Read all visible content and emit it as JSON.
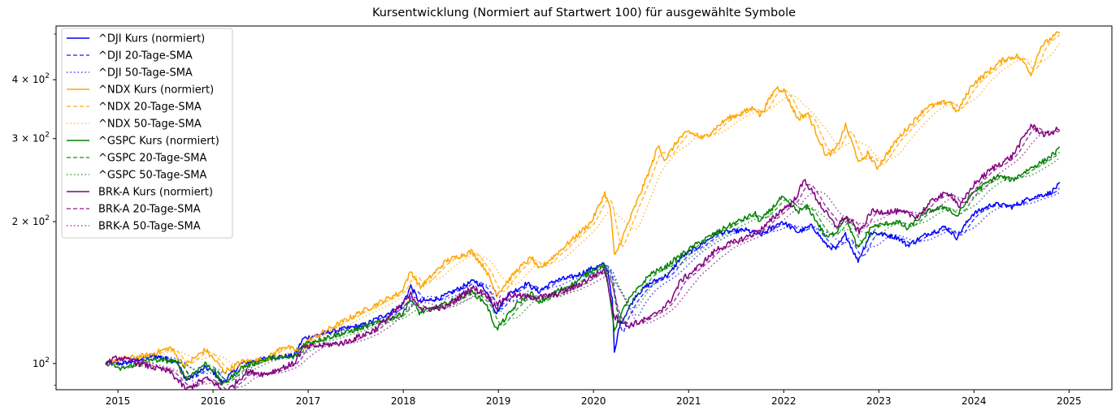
{
  "chart_data": {
    "type": "line",
    "title": "Kursentwicklung (Normiert auf Startwert 100) für ausgewählte Symbole",
    "xlabel": "",
    "ylabel": "",
    "yscale": "log",
    "xlim": [
      2014.35,
      2025.45
    ],
    "ylim": [
      88,
      520
    ],
    "x_ticks": [
      "2015",
      "2016",
      "2017",
      "2018",
      "2019",
      "2020",
      "2021",
      "2022",
      "2023",
      "2024",
      "2025"
    ],
    "y_ticks": [
      {
        "value": 100,
        "base": "10",
        "exp": "2"
      },
      {
        "value": 200,
        "base": "2 × 10",
        "exp": "2"
      },
      {
        "value": 300,
        "base": "3 × 10",
        "exp": "2"
      },
      {
        "value": 400,
        "base": "4 × 10",
        "exp": "2"
      }
    ],
    "y_minor_ticks": [
      90,
      500
    ],
    "grid": false,
    "legend_position": "upper-left",
    "legend": [
      "^DJI Kurs (normiert)",
      "^DJI 20-Tage-SMA",
      "^DJI 50-Tage-SMA",
      "^NDX Kurs (normiert)",
      "^NDX 20-Tage-SMA",
      "^NDX 50-Tage-SMA",
      "^GSPC Kurs (normiert)",
      "^GSPC 20-Tage-SMA",
      "^GSPC 50-Tage-SMA",
      "BRK-A Kurs (normiert)",
      "BRK-A 20-Tage-SMA",
      "BRK-A 50-Tage-SMA"
    ],
    "symbols": [
      {
        "name": "^DJI",
        "color": "#0000ff",
        "anchors": [
          [
            2014.87,
            100
          ],
          [
            2015.05,
            100
          ],
          [
            2015.38,
            104
          ],
          [
            2015.62,
            101
          ],
          [
            2015.72,
            92
          ],
          [
            2015.92,
            98
          ],
          [
            2016.0,
            96
          ],
          [
            2016.1,
            91
          ],
          [
            2016.3,
            100
          ],
          [
            2016.6,
            103
          ],
          [
            2016.85,
            104
          ],
          [
            2016.95,
            113
          ],
          [
            2017.25,
            117
          ],
          [
            2017.6,
            121
          ],
          [
            2017.98,
            132
          ],
          [
            2018.08,
            146
          ],
          [
            2018.17,
            135
          ],
          [
            2018.4,
            138
          ],
          [
            2018.75,
            150
          ],
          [
            2018.87,
            143
          ],
          [
            2018.98,
            128
          ],
          [
            2019.1,
            140
          ],
          [
            2019.3,
            148
          ],
          [
            2019.42,
            142
          ],
          [
            2019.6,
            150
          ],
          [
            2019.8,
            153
          ],
          [
            2019.98,
            159
          ],
          [
            2020.1,
            162
          ],
          [
            2020.15,
            158
          ],
          [
            2020.2,
            135
          ],
          [
            2020.22,
            104
          ],
          [
            2020.27,
            120
          ],
          [
            2020.45,
            140
          ],
          [
            2020.6,
            148
          ],
          [
            2020.8,
            155
          ],
          [
            2020.92,
            168
          ],
          [
            2021.1,
            177
          ],
          [
            2021.3,
            189
          ],
          [
            2021.6,
            192
          ],
          [
            2021.75,
            187
          ],
          [
            2021.98,
            200
          ],
          [
            2022.15,
            190
          ],
          [
            2022.3,
            196
          ],
          [
            2022.45,
            178
          ],
          [
            2022.55,
            175
          ],
          [
            2022.65,
            188
          ],
          [
            2022.78,
            165
          ],
          [
            2022.92,
            190
          ],
          [
            2023.2,
            185
          ],
          [
            2023.3,
            178
          ],
          [
            2023.5,
            188
          ],
          [
            2023.7,
            195
          ],
          [
            2023.82,
            185
          ],
          [
            2023.98,
            207
          ],
          [
            2024.2,
            218
          ],
          [
            2024.4,
            215
          ],
          [
            2024.6,
            225
          ],
          [
            2024.8,
            230
          ],
          [
            2024.9,
            240
          ]
        ],
        "sma20_lag": 0.055,
        "sma50_lag": 0.14,
        "noise": 1.2
      },
      {
        "name": "^NDX",
        "color": "#ffa500",
        "anchors": [
          [
            2014.87,
            100
          ],
          [
            2015.0,
            102
          ],
          [
            2015.3,
            104
          ],
          [
            2015.55,
            108
          ],
          [
            2015.7,
            99
          ],
          [
            2015.92,
            107
          ],
          [
            2016.05,
            100
          ],
          [
            2016.12,
            96
          ],
          [
            2016.3,
            101
          ],
          [
            2016.55,
            102
          ],
          [
            2016.75,
            109
          ],
          [
            2016.9,
            106
          ],
          [
            2017.0,
            112
          ],
          [
            2017.5,
            127
          ],
          [
            2017.98,
            142
          ],
          [
            2018.08,
            157
          ],
          [
            2018.18,
            145
          ],
          [
            2018.45,
            165
          ],
          [
            2018.72,
            173
          ],
          [
            2018.87,
            158
          ],
          [
            2018.98,
            140
          ],
          [
            2019.2,
            158
          ],
          [
            2019.35,
            168
          ],
          [
            2019.42,
            158
          ],
          [
            2019.6,
            170
          ],
          [
            2019.8,
            185
          ],
          [
            2019.98,
            200
          ],
          [
            2020.12,
            230
          ],
          [
            2020.18,
            212
          ],
          [
            2020.22,
            168
          ],
          [
            2020.35,
            195
          ],
          [
            2020.6,
            260
          ],
          [
            2020.68,
            290
          ],
          [
            2020.75,
            270
          ],
          [
            2020.9,
            300
          ],
          [
            2021.0,
            310
          ],
          [
            2021.15,
            300
          ],
          [
            2021.4,
            330
          ],
          [
            2021.7,
            350
          ],
          [
            2021.75,
            335
          ],
          [
            2021.92,
            385
          ],
          [
            2022.0,
            380
          ],
          [
            2022.15,
            330
          ],
          [
            2022.25,
            340
          ],
          [
            2022.45,
            275
          ],
          [
            2022.55,
            285
          ],
          [
            2022.65,
            320
          ],
          [
            2022.8,
            265
          ],
          [
            2022.88,
            280
          ],
          [
            2022.98,
            260
          ],
          [
            2023.2,
            300
          ],
          [
            2023.5,
            350
          ],
          [
            2023.75,
            360
          ],
          [
            2023.82,
            340
          ],
          [
            2023.98,
            390
          ],
          [
            2024.3,
            440
          ],
          [
            2024.45,
            450
          ],
          [
            2024.55,
            430
          ],
          [
            2024.6,
            410
          ],
          [
            2024.7,
            470
          ],
          [
            2024.9,
            505
          ]
        ],
        "sma20_lag": 0.055,
        "sma50_lag": 0.14,
        "noise": 1.3
      },
      {
        "name": "^GSPC",
        "color": "#008000",
        "anchors": [
          [
            2014.87,
            100
          ],
          [
            2014.95,
            100
          ],
          [
            2015.0,
            97
          ],
          [
            2015.35,
            102
          ],
          [
            2015.6,
            101
          ],
          [
            2015.72,
            93
          ],
          [
            2015.92,
            100
          ],
          [
            2016.0,
            97
          ],
          [
            2016.1,
            90
          ],
          [
            2016.3,
            98
          ],
          [
            2016.6,
            103
          ],
          [
            2016.85,
            103
          ],
          [
            2016.95,
            110
          ],
          [
            2017.5,
            118
          ],
          [
            2017.98,
            127
          ],
          [
            2018.08,
            137
          ],
          [
            2018.17,
            128
          ],
          [
            2018.45,
            134
          ],
          [
            2018.72,
            142
          ],
          [
            2018.87,
            134
          ],
          [
            2018.98,
            118
          ],
          [
            2019.2,
            134
          ],
          [
            2019.35,
            141
          ],
          [
            2019.42,
            134
          ],
          [
            2019.6,
            142
          ],
          [
            2019.8,
            148
          ],
          [
            2019.98,
            158
          ],
          [
            2020.12,
            162
          ],
          [
            2020.22,
            118
          ],
          [
            2020.35,
            135
          ],
          [
            2020.6,
            155
          ],
          [
            2020.75,
            160
          ],
          [
            2020.92,
            170
          ],
          [
            2021.1,
            180
          ],
          [
            2021.4,
            195
          ],
          [
            2021.7,
            208
          ],
          [
            2021.75,
            200
          ],
          [
            2021.98,
            225
          ],
          [
            2022.15,
            210
          ],
          [
            2022.25,
            215
          ],
          [
            2022.45,
            185
          ],
          [
            2022.55,
            190
          ],
          [
            2022.65,
            205
          ],
          [
            2022.78,
            175
          ],
          [
            2022.92,
            195
          ],
          [
            2023.2,
            200
          ],
          [
            2023.3,
            193
          ],
          [
            2023.5,
            210
          ],
          [
            2023.7,
            215
          ],
          [
            2023.82,
            205
          ],
          [
            2023.98,
            230
          ],
          [
            2024.25,
            250
          ],
          [
            2024.4,
            245
          ],
          [
            2024.6,
            260
          ],
          [
            2024.75,
            270
          ],
          [
            2024.9,
            285
          ]
        ],
        "sma20_lag": 0.055,
        "sma50_lag": 0.14,
        "noise": 1.2
      },
      {
        "name": "BRK-A",
        "color": "#800080",
        "anchors": [
          [
            2014.87,
            100
          ],
          [
            2015.0,
            103
          ],
          [
            2015.3,
            99
          ],
          [
            2015.55,
            96
          ],
          [
            2015.72,
            88
          ],
          [
            2015.92,
            93
          ],
          [
            2016.05,
            90
          ],
          [
            2016.12,
            86
          ],
          [
            2016.35,
            96
          ],
          [
            2016.55,
            95
          ],
          [
            2016.85,
            100
          ],
          [
            2016.95,
            108
          ],
          [
            2017.4,
            111
          ],
          [
            2017.7,
            118
          ],
          [
            2017.98,
            133
          ],
          [
            2018.08,
            140
          ],
          [
            2018.2,
            130
          ],
          [
            2018.45,
            132
          ],
          [
            2018.72,
            145
          ],
          [
            2018.87,
            140
          ],
          [
            2018.98,
            132
          ],
          [
            2019.1,
            140
          ],
          [
            2019.4,
            138
          ],
          [
            2019.6,
            140
          ],
          [
            2019.85,
            147
          ],
          [
            2019.98,
            153
          ],
          [
            2020.12,
            158
          ],
          [
            2020.22,
            126
          ],
          [
            2020.35,
            120
          ],
          [
            2020.6,
            125
          ],
          [
            2020.8,
            135
          ],
          [
            2020.92,
            150
          ],
          [
            2021.1,
            160
          ],
          [
            2021.3,
            175
          ],
          [
            2021.6,
            185
          ],
          [
            2021.8,
            195
          ],
          [
            2021.98,
            212
          ],
          [
            2022.1,
            220
          ],
          [
            2022.22,
            245
          ],
          [
            2022.4,
            215
          ],
          [
            2022.55,
            195
          ],
          [
            2022.65,
            205
          ],
          [
            2022.8,
            190
          ],
          [
            2022.92,
            210
          ],
          [
            2023.2,
            210
          ],
          [
            2023.4,
            205
          ],
          [
            2023.6,
            225
          ],
          [
            2023.75,
            230
          ],
          [
            2023.85,
            215
          ],
          [
            2024.0,
            240
          ],
          [
            2024.2,
            260
          ],
          [
            2024.4,
            275
          ],
          [
            2024.6,
            320
          ],
          [
            2024.75,
            305
          ],
          [
            2024.9,
            315
          ]
        ],
        "sma20_lag": 0.055,
        "sma50_lag": 0.14,
        "noise": 1.5
      }
    ]
  }
}
